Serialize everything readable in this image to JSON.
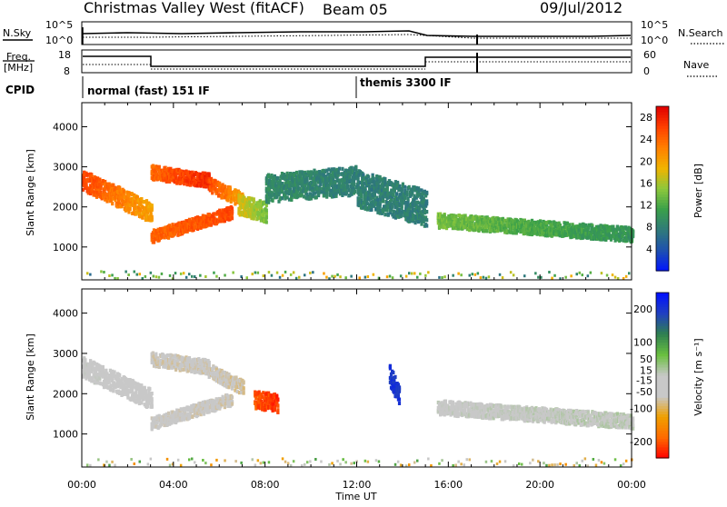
{
  "header": {
    "station": "Christmas Valley West (fitACF)",
    "beam": "Beam 05",
    "date": "09/Jul/2012"
  },
  "panels": {
    "nsky": {
      "label": "N.Sky",
      "right_label": "N.Search",
      "ticks_left": [
        "10^5",
        "10^0"
      ],
      "ticks_right": [
        "10^5",
        "10^0"
      ]
    },
    "freq": {
      "label_line1": "Freq.",
      "label_line2": "[MHz]",
      "right_label": "Nave",
      "ticks_left": [
        "18",
        "8"
      ],
      "ticks_right": [
        "60",
        "0"
      ]
    },
    "cpid": {
      "label": "CPID",
      "modes": [
        {
          "name": "normal (fast) 151 IF",
          "start_hour": 0.0
        },
        {
          "name": "themis 3300 IF",
          "start_hour": 12.0
        }
      ]
    }
  },
  "chart_data": [
    {
      "type": "heatmap",
      "name": "power",
      "ylabel": "Slant Range [km]",
      "yticks": [
        1000,
        2000,
        3000,
        4000
      ],
      "ylim": [
        180,
        4600
      ],
      "colorbar": {
        "label": "Power [dB]",
        "ticks": [
          4,
          8,
          12,
          16,
          20,
          24,
          28
        ],
        "range": [
          0,
          30
        ]
      },
      "echo_bands": [
        {
          "t0": 0.0,
          "t1": 3.0,
          "range_start": 2700,
          "range_end": 1900,
          "width": 500,
          "value_start": 26,
          "value_end": 20
        },
        {
          "t0": 3.0,
          "t1": 5.5,
          "range_start": 2900,
          "range_end": 2700,
          "width": 350,
          "value_start": 24,
          "value_end": 28
        },
        {
          "t0": 3.0,
          "t1": 6.5,
          "range_start": 1300,
          "range_end": 1900,
          "width": 300,
          "value_start": 24,
          "value_end": 26
        },
        {
          "t0": 5.5,
          "t1": 7.0,
          "range_start": 2600,
          "range_end": 2200,
          "width": 350,
          "value_start": 26,
          "value_end": 20
        },
        {
          "t0": 6.8,
          "t1": 8.0,
          "range_start": 2100,
          "range_end": 1900,
          "width": 500,
          "value_start": 18,
          "value_end": 14
        },
        {
          "t0": 8.0,
          "t1": 12.0,
          "range_start": 2500,
          "range_end": 2700,
          "width": 700,
          "value_start": 9,
          "value_end": 8
        },
        {
          "t0": 12.0,
          "t1": 15.0,
          "range_start": 2500,
          "range_end": 2000,
          "width": 900,
          "value_start": 8,
          "value_end": 8
        },
        {
          "t0": 15.5,
          "t1": 24.0,
          "range_start": 1700,
          "range_end": 1350,
          "width": 350,
          "value_start": 14,
          "value_end": 10
        }
      ]
    },
    {
      "type": "heatmap",
      "name": "velocity",
      "xlabel": "Time UT",
      "ylabel": "Slant Range [km]",
      "xticks": [
        "00:00",
        "04:00",
        "08:00",
        "12:00",
        "16:00",
        "20:00",
        "00:00"
      ],
      "xlim": [
        0,
        24
      ],
      "yticks": [
        1000,
        2000,
        3000,
        4000
      ],
      "ylim": [
        180,
        4600
      ],
      "colorbar": {
        "label": "Velocity [m s⁻¹]",
        "ticks": [
          200,
          100,
          50,
          15,
          -15,
          -50,
          -100,
          -200
        ],
        "range": [
          -250,
          250
        ]
      },
      "echo_bands": [
        {
          "t0": 0.0,
          "t1": 3.0,
          "range_start": 2700,
          "range_end": 1900,
          "width": 500,
          "value_start": -10,
          "value_end": -30
        },
        {
          "t0": 3.0,
          "t1": 5.5,
          "range_start": 2900,
          "range_end": 2700,
          "width": 350,
          "value_start": -60,
          "value_end": -60
        },
        {
          "t0": 3.0,
          "t1": 6.5,
          "range_start": 1300,
          "range_end": 1900,
          "width": 300,
          "value_start": -50,
          "value_end": -60
        },
        {
          "t0": 5.5,
          "t1": 7.0,
          "range_start": 2600,
          "range_end": 2200,
          "width": 350,
          "value_start": -60,
          "value_end": -70
        },
        {
          "t0": 7.5,
          "t1": 8.5,
          "range_start": 1900,
          "range_end": 1800,
          "width": 450,
          "value_start": -200,
          "value_end": -220
        },
        {
          "t0": 13.4,
          "t1": 13.8,
          "range_start": 2500,
          "range_end": 2000,
          "width": 500,
          "value_start": 200,
          "value_end": 200
        },
        {
          "t0": 15.5,
          "t1": 24.0,
          "range_start": 1700,
          "range_end": 1350,
          "width": 350,
          "value_start": -10,
          "value_end": 5
        }
      ]
    }
  ]
}
